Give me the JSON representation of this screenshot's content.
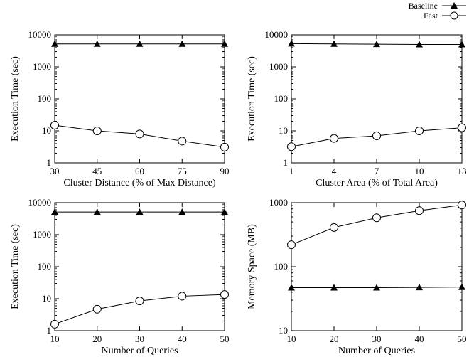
{
  "legend": {
    "baseline_label": "Baseline",
    "fast_label": "Fast",
    "placement": "top-right"
  },
  "chart_data": [
    {
      "type": "line",
      "scale_y": "log",
      "x": [
        30,
        45,
        60,
        75,
        90
      ],
      "xticks": [
        "30",
        "45",
        "60",
        "75",
        "90"
      ],
      "xlabel": "Cluster Distance (% of Max Distance)",
      "ylabel": "Execution Time (sec)",
      "ylim": [
        1,
        10000
      ],
      "yticks": [
        "1",
        "10",
        "100",
        "1000",
        "10000"
      ],
      "series": [
        {
          "name": "Baseline",
          "marker": "triangle",
          "values": [
            5200,
            5200,
            5200,
            5200,
            5200
          ]
        },
        {
          "name": "Fast",
          "marker": "circle",
          "values": [
            15,
            10,
            8,
            4.8,
            3.1
          ]
        }
      ]
    },
    {
      "type": "line",
      "scale_y": "log",
      "x": [
        1,
        4,
        7,
        10,
        13
      ],
      "xticks": [
        "1",
        "4",
        "7",
        "10",
        "13"
      ],
      "xlabel": "Cluster Area (% of Total Area)",
      "ylabel": "Execution Time (sec)",
      "ylim": [
        1,
        10000
      ],
      "yticks": [
        "1",
        "10",
        "100",
        "1000",
        "10000"
      ],
      "series": [
        {
          "name": "Baseline",
          "marker": "triangle",
          "values": [
            5300,
            5200,
            5100,
            5000,
            5000
          ]
        },
        {
          "name": "Fast",
          "marker": "circle",
          "values": [
            3.2,
            5.8,
            7,
            10,
            12.5
          ]
        }
      ]
    },
    {
      "type": "line",
      "scale_y": "log",
      "x": [
        10,
        20,
        30,
        40,
        50
      ],
      "xticks": [
        "10",
        "20",
        "30",
        "40",
        "50"
      ],
      "xlabel": "Number of Queries",
      "ylabel": "Execution Time (sec)",
      "ylim": [
        1,
        10000
      ],
      "yticks": [
        "1",
        "10",
        "100",
        "1000",
        "10000"
      ],
      "series": [
        {
          "name": "Baseline",
          "marker": "triangle",
          "values": [
            5100,
            5100,
            5100,
            5100,
            5100
          ]
        },
        {
          "name": "Fast",
          "marker": "circle",
          "values": [
            1.6,
            4.7,
            8.5,
            12,
            13.5
          ]
        }
      ]
    },
    {
      "type": "line",
      "scale_y": "log",
      "x": [
        10,
        20,
        30,
        40,
        50
      ],
      "xticks": [
        "10",
        "20",
        "30",
        "40",
        "50"
      ],
      "xlabel": "Number of Queries",
      "ylabel": "Memory Space (MB)",
      "ylim": [
        10,
        1000
      ],
      "yticks": [
        "10",
        "100",
        "1000"
      ],
      "series": [
        {
          "name": "Baseline",
          "marker": "triangle",
          "values": [
            47,
            47,
            47,
            47.5,
            48
          ]
        },
        {
          "name": "Fast",
          "marker": "circle",
          "values": [
            220,
            410,
            580,
            750,
            920
          ]
        }
      ]
    }
  ]
}
